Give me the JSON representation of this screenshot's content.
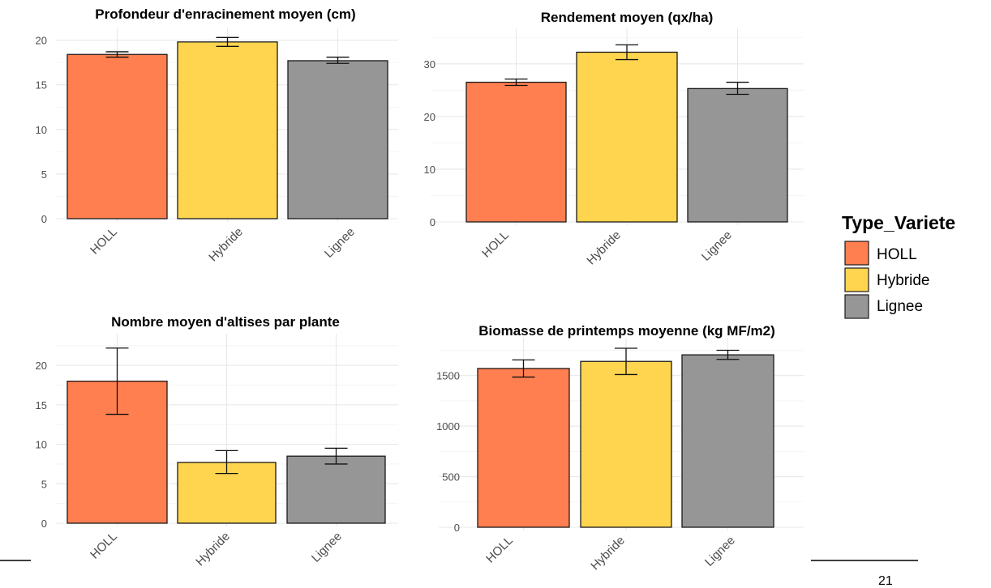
{
  "chart_data": [
    {
      "type": "bar",
      "title": "Profondeur d'enracinement moyen (cm)",
      "categories": [
        "HOLL",
        "Hybride",
        "Lignee"
      ],
      "values": [
        18.4,
        19.8,
        17.7
      ],
      "error_low": [
        18.1,
        19.3,
        17.4
      ],
      "error_high": [
        18.7,
        20.3,
        18.1
      ],
      "ylim": [
        0,
        20.6
      ],
      "yticks": [
        0,
        5,
        10,
        15,
        20
      ],
      "ytick_labels": [
        "0",
        "5",
        "10",
        "15",
        "20"
      ],
      "grid": true
    },
    {
      "type": "bar",
      "title": "Rendement moyen (qx/ha)",
      "categories": [
        "HOLL",
        "Hybride",
        "Lignee"
      ],
      "values": [
        26.5,
        32.2,
        25.3
      ],
      "error_low": [
        25.9,
        30.8,
        24.2
      ],
      "error_high": [
        27.1,
        33.6,
        26.5
      ],
      "ylim": [
        0,
        35.5
      ],
      "yticks": [
        0,
        10,
        20,
        30
      ],
      "ytick_labels": [
        "0",
        "10",
        "20",
        "30"
      ],
      "grid": true
    },
    {
      "type": "bar",
      "title": "Nombre moyen d'altises par plante",
      "categories": [
        "HOLL",
        "Hybride",
        "Lignee"
      ],
      "values": [
        18.0,
        7.7,
        8.5
      ],
      "error_low": [
        13.8,
        6.3,
        7.5
      ],
      "error_high": [
        22.2,
        9.2,
        9.5
      ],
      "ylim": [
        0,
        23.2
      ],
      "yticks": [
        0,
        5,
        10,
        15,
        20
      ],
      "ytick_labels": [
        "0",
        "5",
        "10",
        "15",
        "20"
      ],
      "grid": true
    },
    {
      "type": "bar",
      "title": "Biomasse de printemps moyenne (kg MF/m2)",
      "categories": [
        "HOLL",
        "Hybride",
        "Lignee"
      ],
      "values": [
        1570,
        1640,
        1705
      ],
      "error_low": [
        1485,
        1510,
        1660
      ],
      "error_high": [
        1655,
        1770,
        1750
      ],
      "ylim": [
        0,
        1810
      ],
      "yticks": [
        0,
        500,
        1000,
        1500
      ],
      "ytick_labels": [
        "0",
        "500",
        "1000",
        "1500"
      ],
      "grid": true
    }
  ],
  "legend": {
    "title": "Type_Variete",
    "position": "right",
    "items": [
      {
        "label": "HOLL",
        "color": "#FF7F50"
      },
      {
        "label": "Hybride",
        "color": "#FFD54F"
      },
      {
        "label": "Lignee",
        "color": "#969696"
      }
    ]
  },
  "colors": {
    "HOLL": "#FF7F50",
    "Hybride": "#FFD54F",
    "Lignee": "#969696",
    "grid": "#e8e8e8",
    "bar_outline": "#1a1a1a"
  },
  "page_number": "21"
}
